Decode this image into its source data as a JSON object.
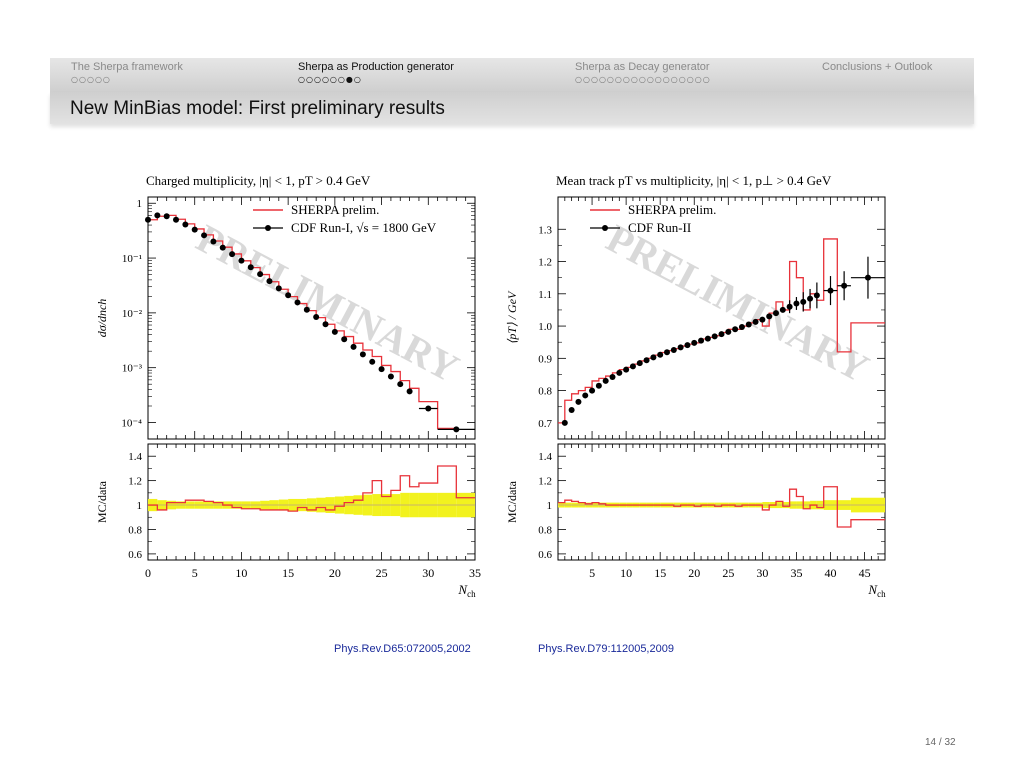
{
  "nav": {
    "items": [
      {
        "label": "The Sherpa framework",
        "dots": "○○○○○",
        "active": false
      },
      {
        "label": "Sherpa as Production generator",
        "dots": "○○○○○○●○",
        "active": true
      },
      {
        "label": "Sherpa as Decay generator",
        "dots": "○○○○○○○○○○○○○○○○○",
        "active": false
      },
      {
        "label": "Conclusions + Outlook",
        "dots": "",
        "active": false
      }
    ]
  },
  "frame_title": "New MinBias model: First preliminary results",
  "watermark": "PRELIMINARY",
  "references": [
    "Phys.Rev.D65:072005,2002",
    "Phys.Rev.D79:112005,2009"
  ],
  "page_number": "14 / 32",
  "colors": {
    "mc": "#e8323a",
    "data": "#000000",
    "band": "#f2f21e",
    "watermark": "#d9d9d9",
    "nav_active": "#111111",
    "nav_inactive": "#8a8a8a"
  },
  "chart_data": [
    {
      "type": "line",
      "title": "Charged multiplicity, |η| < 1, pT > 0.4 GeV",
      "xlabel": "Nch",
      "ylabel": "dσ/dnch",
      "yscale": "log",
      "xlim": [
        0,
        35
      ],
      "ylim": [
        5e-05,
        1.3
      ],
      "ytick_labels": [
        "1",
        "10⁻¹",
        "10⁻²",
        "10⁻³",
        "10⁻⁴"
      ],
      "xtick_labels": [
        "0",
        "5",
        "10",
        "15",
        "20",
        "25",
        "30",
        "35"
      ],
      "legend": [
        "SHERPA prelim.",
        "CDF Run-I, √s = 1800 GeV"
      ],
      "legend_position": "top-right",
      "series": [
        {
          "name": "CDF Run-I, √s = 1800 GeV",
          "style": "points",
          "x": [
            0,
            1,
            2,
            3,
            4,
            5,
            6,
            7,
            8,
            9,
            10,
            11,
            12,
            13,
            14,
            15,
            16,
            17,
            18,
            19,
            20,
            21,
            22,
            23,
            24,
            25,
            26,
            27,
            28,
            30,
            33
          ],
          "y": [
            0.5,
            0.6,
            0.58,
            0.5,
            0.41,
            0.33,
            0.26,
            0.2,
            0.155,
            0.118,
            0.09,
            0.068,
            0.051,
            0.038,
            0.028,
            0.021,
            0.0155,
            0.0114,
            0.0084,
            0.0062,
            0.0045,
            0.0033,
            0.0024,
            0.00175,
            0.00128,
            0.00094,
            0.00069,
            0.0005,
            0.00037,
            0.00018,
            7.5e-05
          ],
          "xerr_bins": [
            [
              29,
              31
            ],
            [
              31,
              35
            ]
          ]
        },
        {
          "name": "SHERPA prelim.",
          "style": "step",
          "bins": [
            0,
            1,
            2,
            3,
            4,
            5,
            6,
            7,
            8,
            9,
            10,
            11,
            12,
            13,
            14,
            15,
            16,
            17,
            18,
            19,
            20,
            21,
            22,
            23,
            24,
            25,
            26,
            27,
            28,
            29,
            31,
            33,
            35
          ],
          "y": [
            0.5,
            0.58,
            0.6,
            0.51,
            0.42,
            0.34,
            0.265,
            0.205,
            0.158,
            0.119,
            0.089,
            0.067,
            0.05,
            0.037,
            0.027,
            0.0198,
            0.0148,
            0.011,
            0.0082,
            0.0062,
            0.0047,
            0.0037,
            0.0028,
            0.0021,
            0.0016,
            0.0011,
            0.00085,
            0.00058,
            0.00042,
            0.00024,
            7.8e-05
          ]
        }
      ],
      "ratio_panel": {
        "ylabel": "MC/data",
        "ylim": [
          0.55,
          1.5
        ],
        "ytick_labels": [
          "1.4",
          "1.2",
          "1",
          "0.8",
          "0.6"
        ],
        "bins": [
          0,
          1,
          2,
          3,
          4,
          5,
          6,
          7,
          8,
          9,
          10,
          11,
          12,
          13,
          14,
          15,
          16,
          17,
          18,
          19,
          20,
          21,
          22,
          23,
          24,
          25,
          26,
          27,
          28,
          29,
          31,
          33,
          35
        ],
        "mc_over_data": [
          1.0,
          0.96,
          1.02,
          1.02,
          1.04,
          1.04,
          1.03,
          1.02,
          1.0,
          0.98,
          0.97,
          0.97,
          0.96,
          0.96,
          0.96,
          0.95,
          0.98,
          0.96,
          0.98,
          0.96,
          0.99,
          1.02,
          1.04,
          1.1,
          1.2,
          1.07,
          1.12,
          1.24,
          1.15,
          1.18,
          1.32,
          1.06
        ],
        "band_halfwidth": [
          0.05,
          0.04,
          0.035,
          0.03,
          0.03,
          0.03,
          0.03,
          0.03,
          0.03,
          0.03,
          0.03,
          0.03,
          0.035,
          0.04,
          0.045,
          0.05,
          0.05,
          0.055,
          0.06,
          0.065,
          0.07,
          0.075,
          0.08,
          0.085,
          0.09,
          0.09,
          0.09,
          0.1,
          0.1,
          0.1,
          0.1,
          0.1
        ]
      }
    },
    {
      "type": "line",
      "title": "Mean track pT vs multiplicity, |η| < 1, p⊥ > 0.4 GeV",
      "xlabel": "Nch",
      "ylabel": "⟨pT⟩ / GeV",
      "xlim": [
        0,
        48
      ],
      "ylim": [
        0.65,
        1.4
      ],
      "ytick_labels": [
        "1.3",
        "1.2",
        "1.1",
        "1.0",
        "0.9",
        "0.8",
        "0.7"
      ],
      "xtick_labels": [
        "5",
        "10",
        "15",
        "20",
        "25",
        "30",
        "35",
        "40",
        "45"
      ],
      "legend": [
        "SHERPA prelim.",
        "CDF Run-II"
      ],
      "legend_position": "top-left",
      "series": [
        {
          "name": "CDF Run-II",
          "style": "points",
          "x": [
            1,
            2,
            3,
            4,
            5,
            6,
            7,
            8,
            9,
            10,
            11,
            12,
            13,
            14,
            15,
            16,
            17,
            18,
            19,
            20,
            21,
            22,
            23,
            24,
            25,
            26,
            27,
            28,
            29,
            30,
            31,
            32,
            33,
            34,
            35,
            36,
            37,
            38,
            40,
            42,
            45.5
          ],
          "y": [
            0.7,
            0.74,
            0.765,
            0.785,
            0.8,
            0.815,
            0.83,
            0.842,
            0.855,
            0.865,
            0.875,
            0.885,
            0.894,
            0.903,
            0.911,
            0.919,
            0.926,
            0.934,
            0.941,
            0.948,
            0.955,
            0.961,
            0.968,
            0.975,
            0.982,
            0.99,
            0.997,
            1.005,
            1.013,
            1.02,
            1.03,
            1.04,
            1.05,
            1.06,
            1.07,
            1.075,
            1.085,
            1.095,
            1.11,
            1.125,
            1.15
          ],
          "yerr": [
            0,
            0,
            0,
            0,
            0,
            0,
            0,
            0,
            0,
            0,
            0,
            0,
            0,
            0,
            0,
            0,
            0,
            0,
            0,
            0,
            0,
            0,
            0,
            0,
            0,
            0,
            0,
            0,
            0,
            0,
            0,
            0,
            0,
            0.02,
            0.02,
            0.03,
            0.03,
            0.04,
            0.045,
            0.045,
            0.065
          ],
          "xerr_bins": [
            [
              39,
              41
            ],
            [
              41,
              43
            ],
            [
              43,
              48
            ]
          ]
        },
        {
          "name": "SHERPA prelim.",
          "style": "step",
          "bins": [
            0,
            1,
            2,
            3,
            4,
            5,
            6,
            7,
            8,
            9,
            10,
            11,
            12,
            13,
            14,
            15,
            16,
            17,
            18,
            19,
            20,
            21,
            22,
            23,
            24,
            25,
            26,
            27,
            28,
            29,
            30,
            31,
            32,
            33,
            34,
            35,
            36,
            37,
            38,
            39,
            41,
            43,
            48
          ],
          "y": [
            0.7,
            0.77,
            0.79,
            0.8,
            0.81,
            0.83,
            0.838,
            0.845,
            0.855,
            0.865,
            0.872,
            0.882,
            0.892,
            0.9,
            0.91,
            0.918,
            0.924,
            0.93,
            0.938,
            0.944,
            0.948,
            0.96,
            0.965,
            0.97,
            0.98,
            0.99,
            0.99,
            1.0,
            1.01,
            1.02,
            1.0,
            1.04,
            1.075,
            1.05,
            1.2,
            1.15,
            1.05,
            1.1,
            1.08,
            1.27,
            0.92,
            1.01
          ]
        }
      ],
      "ratio_panel": {
        "ylabel": "MC/data",
        "ylim": [
          0.55,
          1.5
        ],
        "ytick_labels": [
          "1.4",
          "1.2",
          "1",
          "0.8",
          "0.6"
        ],
        "bins": [
          0,
          1,
          2,
          3,
          4,
          5,
          6,
          7,
          8,
          9,
          10,
          11,
          12,
          13,
          14,
          15,
          16,
          17,
          18,
          19,
          20,
          21,
          22,
          23,
          24,
          25,
          26,
          27,
          28,
          29,
          30,
          31,
          32,
          33,
          34,
          35,
          36,
          37,
          38,
          39,
          41,
          43,
          48
        ],
        "mc_over_data": [
          1.02,
          1.04,
          1.03,
          1.02,
          1.01,
          1.02,
          1.01,
          1.0,
          1.0,
          1.0,
          1.0,
          1.0,
          1.0,
          1.0,
          1.0,
          1.0,
          1.0,
          0.99,
          1.0,
          1.0,
          0.99,
          1.0,
          1.0,
          0.99,
          1.0,
          1.0,
          0.99,
          1.0,
          1.0,
          1.0,
          0.96,
          1.0,
          1.03,
          0.99,
          1.13,
          1.07,
          0.97,
          1.0,
          0.98,
          1.15,
          0.82,
          0.88
        ],
        "band_halfwidth": [
          0.02,
          0.02,
          0.02,
          0.02,
          0.02,
          0.02,
          0.02,
          0.02,
          0.02,
          0.02,
          0.02,
          0.02,
          0.02,
          0.02,
          0.02,
          0.02,
          0.02,
          0.02,
          0.02,
          0.02,
          0.02,
          0.02,
          0.02,
          0.02,
          0.02,
          0.02,
          0.02,
          0.02,
          0.02,
          0.02,
          0.025,
          0.025,
          0.025,
          0.025,
          0.03,
          0.03,
          0.03,
          0.035,
          0.035,
          0.04,
          0.04,
          0.06
        ]
      }
    }
  ]
}
